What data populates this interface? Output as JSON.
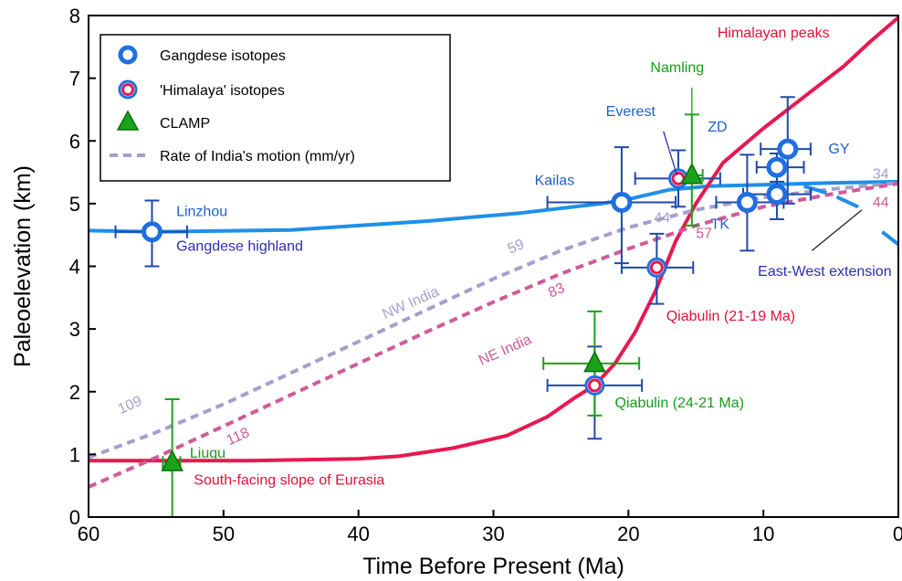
{
  "chart_data": {
    "type": "line",
    "xlabel": "Time Before Present (Ma)",
    "ylabel": "Paleoelevation (km)",
    "xlim": [
      60,
      0
    ],
    "ylim": [
      0,
      8
    ],
    "x_reversed": true,
    "x_ticks": [
      "60",
      "50",
      "40",
      "30",
      "20",
      "10",
      "0"
    ],
    "y_ticks": [
      "0",
      "1",
      "2",
      "3",
      "4",
      "5",
      "6",
      "7",
      "8"
    ],
    "grid": false,
    "legend_position": "top-left",
    "legend": [
      {
        "label": "Gangdese isotopes",
        "symbol": "circle-blue"
      },
      {
        "label": "'Himalaya' isotopes",
        "symbol": "circle-red"
      },
      {
        "label": "CLAMP",
        "symbol": "triangle-green"
      },
      {
        "label": "Rate of India's motion (mm/yr)",
        "symbol": "dashed-lavender"
      }
    ],
    "colors": {
      "gangdese": "#1f8fe8",
      "himalaya": "#e8184f",
      "clamp": "#1aa31a",
      "nw_india": "#a59fcc",
      "ne_india": "#d05a9a",
      "errorbar": "#1f4aa8",
      "label_blue": "#1f5fcf",
      "label_purple": "#2d2db0",
      "label_green": "#1a9a1a",
      "label_red": "#e0103a"
    },
    "curves": [
      {
        "name": "Gangdese highland",
        "color": "gangdese",
        "style": "solid",
        "points": [
          [
            60,
            4.57
          ],
          [
            55,
            4.55
          ],
          [
            45,
            4.58
          ],
          [
            35,
            4.72
          ],
          [
            28,
            4.85
          ],
          [
            22,
            5.0
          ],
          [
            20,
            5.07
          ],
          [
            17,
            5.22
          ],
          [
            14,
            5.28
          ],
          [
            10,
            5.3
          ],
          [
            5,
            5.33
          ],
          [
            0,
            5.35
          ]
        ]
      },
      {
        "name": "South-facing slope of Eurasia",
        "color": "himalaya",
        "style": "solid",
        "points": [
          [
            60,
            0.9
          ],
          [
            55,
            0.9
          ],
          [
            48,
            0.9
          ],
          [
            40,
            0.93
          ],
          [
            37,
            0.97
          ],
          [
            33,
            1.1
          ],
          [
            29,
            1.3
          ],
          [
            26,
            1.6
          ],
          [
            24,
            1.9
          ],
          [
            22.5,
            2.1
          ],
          [
            21,
            2.45
          ],
          [
            19.5,
            2.95
          ],
          [
            18,
            3.6
          ],
          [
            16.5,
            4.4
          ],
          [
            15,
            5.0
          ],
          [
            13,
            5.65
          ],
          [
            10,
            6.2
          ],
          [
            7,
            6.7
          ],
          [
            4,
            7.2
          ],
          [
            2,
            7.6
          ],
          [
            0,
            7.97
          ]
        ]
      },
      {
        "name": "NW India",
        "color": "nw_india",
        "style": "dashed",
        "points": [
          [
            60,
            0.95
          ],
          [
            55,
            1.35
          ],
          [
            50,
            1.8
          ],
          [
            45,
            2.3
          ],
          [
            40,
            2.8
          ],
          [
            35,
            3.3
          ],
          [
            30,
            3.8
          ],
          [
            25,
            4.25
          ],
          [
            20,
            4.62
          ],
          [
            15,
            4.9
          ],
          [
            10,
            5.1
          ],
          [
            5,
            5.23
          ],
          [
            0,
            5.33
          ]
        ]
      },
      {
        "name": "NE India",
        "color": "ne_india",
        "style": "dashed",
        "points": [
          [
            60,
            0.48
          ],
          [
            55,
            0.95
          ],
          [
            50,
            1.45
          ],
          [
            45,
            1.95
          ],
          [
            40,
            2.45
          ],
          [
            35,
            2.95
          ],
          [
            30,
            3.43
          ],
          [
            25,
            3.88
          ],
          [
            20,
            4.28
          ],
          [
            15,
            4.65
          ],
          [
            10,
            4.95
          ],
          [
            5,
            5.15
          ],
          [
            0,
            5.32
          ]
        ]
      },
      {
        "name": "East-West extension",
        "color": "gangdese",
        "style": "longdash",
        "points": [
          [
            7,
            5.28
          ],
          [
            5,
            5.15
          ],
          [
            3,
            4.95
          ],
          [
            2.5,
            4.85
          ]
        ]
      },
      {
        "name": "East-West extension (lower)",
        "color": "gangdese",
        "style": "longdash",
        "points": [
          [
            1.2,
            4.55
          ],
          [
            0,
            4.35
          ]
        ]
      }
    ],
    "points": [
      {
        "label": "Linzhou",
        "x": 55.3,
        "y": 4.55,
        "xerr": [
          58,
          52.7
        ],
        "yerr": [
          4.0,
          5.05
        ],
        "type": "gangdese"
      },
      {
        "label": "Kailas",
        "x": 20.5,
        "y": 5.02,
        "xerr": [
          26,
          16.5
        ],
        "yerr": [
          4.05,
          5.9
        ],
        "type": "gangdese"
      },
      {
        "label": "",
        "x": 11.2,
        "y": 5.02,
        "xerr": [
          13.5,
          8.5
        ],
        "yerr": [
          4.25,
          5.78
        ],
        "type": "gangdese"
      },
      {
        "label": "",
        "x": 9.0,
        "y": 5.15,
        "xerr": [
          11.5,
          6.5
        ],
        "yerr": [
          4.75,
          5.55
        ],
        "type": "gangdese"
      },
      {
        "label": "",
        "x": 9.0,
        "y": 5.58,
        "xerr": [
          10.5,
          7.0
        ],
        "yerr": [
          5.35,
          5.8
        ],
        "type": "gangdese"
      },
      {
        "label": "GY",
        "x": 8.2,
        "y": 5.87,
        "xerr": [
          10.2,
          6.5
        ],
        "yerr": [
          5.0,
          6.7
        ],
        "type": "gangdese"
      },
      {
        "label": "Everest",
        "x": 16.3,
        "y": 5.4,
        "xerr": [
          19.5,
          13.2
        ],
        "yerr": [
          4.95,
          5.85
        ],
        "type": "himalaya"
      },
      {
        "label": "",
        "x": 17.9,
        "y": 3.98,
        "xerr": [
          20.5,
          15.2
        ],
        "yerr": [
          3.4,
          4.52
        ],
        "type": "himalaya"
      },
      {
        "label": "",
        "x": 22.5,
        "y": 2.1,
        "xerr": [
          26,
          19
        ],
        "yerr": [
          1.25,
          2.72
        ],
        "type": "himalaya"
      },
      {
        "label": "Namling",
        "x": 15.3,
        "y": 5.45,
        "xerr": [
          16.3,
          14.5
        ],
        "yerr": [
          4.65,
          6.42
        ],
        "type": "clamp"
      },
      {
        "label": "",
        "x": 22.5,
        "y": 2.45,
        "xerr": [
          26.3,
          19.2
        ],
        "yerr": [
          1.62,
          3.28
        ],
        "type": "clamp"
      },
      {
        "label": "Liuqu",
        "x": 53.8,
        "y": 0.87,
        "xerr": [
          54.5,
          53.2
        ],
        "yerr": [
          0,
          1.88
        ],
        "type": "clamp"
      }
    ],
    "annotations": [
      {
        "text": "Linzhou",
        "x": 53.5,
        "y": 4.8,
        "color": "label_blue",
        "anchor": "start"
      },
      {
        "text": "Gangdese highland",
        "x": 53.5,
        "y": 4.25,
        "color": "label_purple",
        "anchor": "start"
      },
      {
        "text": "Kailas",
        "x": 24,
        "y": 5.3,
        "color": "label_blue",
        "anchor": "end"
      },
      {
        "text": "Everest",
        "x": 18,
        "y": 6.4,
        "color": "label_blue",
        "anchor": "end"
      },
      {
        "text": "Namling",
        "x": 14.4,
        "y": 7.1,
        "color": "label_green",
        "anchor": "end"
      },
      {
        "text": "Himalayan peaks",
        "x": 5.1,
        "y": 7.65,
        "color": "label_red",
        "anchor": "end"
      },
      {
        "text": "ZD",
        "x": 13.4,
        "y": 6.15,
        "color": "label_blue",
        "anchor": "middle"
      },
      {
        "text": "GY",
        "x": 4.4,
        "y": 5.8,
        "color": "label_blue",
        "anchor": "middle"
      },
      {
        "text": "TK",
        "x": 13.2,
        "y": 4.6,
        "color": "label_blue",
        "anchor": "middle"
      },
      {
        "text": "East-West extension",
        "x": 0.5,
        "y": 3.85,
        "color": "label_purple",
        "anchor": "end"
      },
      {
        "text": "Qiabulin (21-19 Ma)",
        "x": 17.2,
        "y": 3.13,
        "color": "label_red",
        "anchor": "start"
      },
      {
        "text": "Qiabulin (24-21 Ma)",
        "x": 21.0,
        "y": 1.75,
        "color": "label_green",
        "anchor": "start"
      },
      {
        "text": "Liuqu",
        "x": 52.5,
        "y": 0.95,
        "color": "label_green",
        "anchor": "start"
      },
      {
        "text": "South-facing slope of Eurasia",
        "x": 52.2,
        "y": 0.52,
        "color": "label_red",
        "anchor": "start"
      },
      {
        "text": "NW India",
        "x": 36,
        "y": 3.35,
        "color": "nw_india",
        "anchor": "middle",
        "rotate": -24
      },
      {
        "text": "NE India",
        "x": 29,
        "y": 2.6,
        "color": "ne_india",
        "anchor": "middle",
        "rotate": -24
      },
      {
        "text": "59",
        "x": 28.2,
        "y": 4.25,
        "color": "nw_india",
        "anchor": "middle",
        "rotate": -24
      },
      {
        "text": "83",
        "x": 25.2,
        "y": 3.55,
        "color": "ne_india",
        "anchor": "middle",
        "rotate": -24
      },
      {
        "text": "109",
        "x": 56.8,
        "y": 1.72,
        "color": "nw_india",
        "anchor": "middle",
        "rotate": -24
      },
      {
        "text": "118",
        "x": 48.8,
        "y": 1.22,
        "color": "ne_india",
        "anchor": "middle",
        "rotate": -24
      },
      {
        "text": "44",
        "x": 17.5,
        "y": 4.7,
        "color": "nw_india",
        "anchor": "middle"
      },
      {
        "text": "57",
        "x": 14.4,
        "y": 4.45,
        "color": "ne_india",
        "anchor": "middle"
      },
      {
        "text": "34",
        "x": 1.3,
        "y": 5.4,
        "color": "nw_india",
        "anchor": "middle"
      },
      {
        "text": "44",
        "x": 1.3,
        "y": 4.95,
        "color": "ne_india",
        "anchor": "middle"
      }
    ],
    "leader_lines": [
      {
        "from": [
          17.4,
          6.15
        ],
        "to": [
          16.4,
          5.45
        ],
        "color": "label_purple"
      },
      {
        "from": [
          15.3,
          6.85
        ],
        "to": [
          15.3,
          5.6
        ],
        "color": "label_green"
      },
      {
        "from": [
          6.4,
          4.25
        ],
        "to": [
          2.7,
          4.9
        ],
        "color": "#222222"
      }
    ]
  }
}
